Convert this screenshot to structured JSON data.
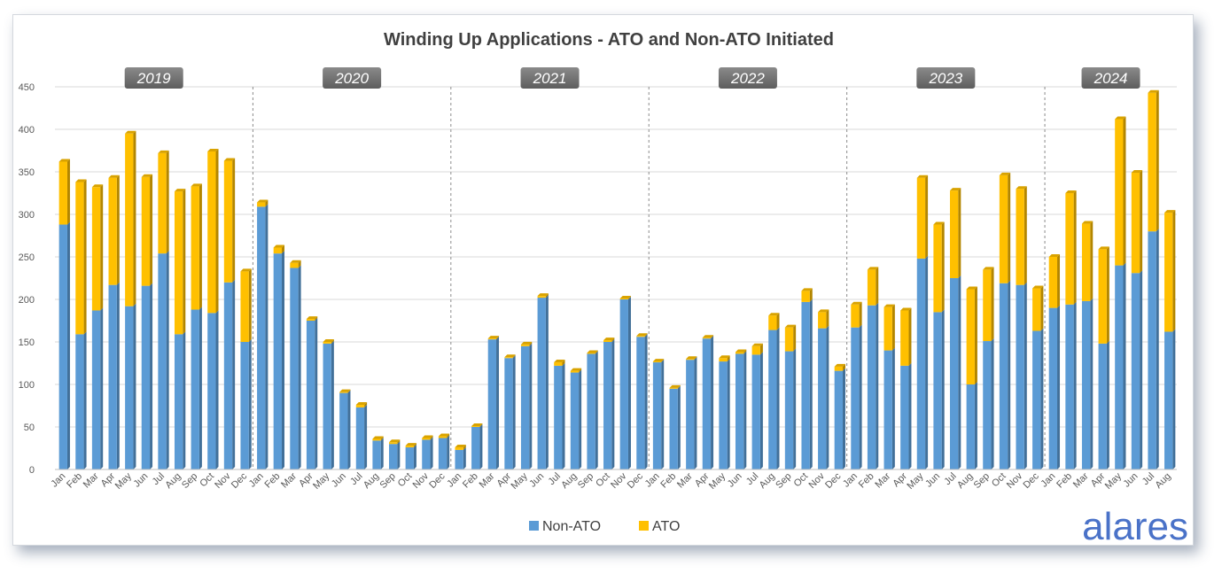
{
  "chart_data": {
    "type": "bar",
    "stacked": true,
    "title": "Winding Up Applications - ATO and Non-ATO Initiated",
    "xlabel": "",
    "ylabel": "",
    "ylim": [
      0,
      450
    ],
    "yticks": [
      0,
      50,
      100,
      150,
      200,
      250,
      300,
      350,
      400,
      450
    ],
    "grid": true,
    "legend": "bottom-center",
    "years": [
      "2019",
      "2020",
      "2021",
      "2022",
      "2023",
      "2024"
    ],
    "categories": [
      "Jan",
      "Feb",
      "Mar",
      "Apr",
      "May",
      "Jun",
      "Jul",
      "Aug",
      "Sep",
      "Oct",
      "Nov",
      "Dec",
      "Jan",
      "Feb",
      "Mar",
      "Apr",
      "May",
      "Jun",
      "Jul",
      "Aug",
      "Sep",
      "Oct",
      "Nov",
      "Dec",
      "Jan",
      "Feb",
      "Mar",
      "Apr",
      "May",
      "Jun",
      "Jul",
      "Aug",
      "Sep",
      "Oct",
      "Nov",
      "Dec",
      "Jan",
      "Feb",
      "Mar",
      "Apr",
      "May",
      "Jun",
      "Jul",
      "Aug",
      "Sep",
      "Oct",
      "Nov",
      "Dec",
      "Jan",
      "Feb",
      "Mar",
      "Apr",
      "May",
      "Jun",
      "Jul",
      "Aug",
      "Sep",
      "Oct",
      "Nov",
      "Dec",
      "Jan",
      "Feb",
      "Mar",
      "Apr",
      "May",
      "Jun",
      "Jul",
      "Aug"
    ],
    "series": [
      {
        "name": "Non-ATO",
        "color": "#5b9bd5",
        "values": [
          288,
          159,
          187,
          217,
          192,
          216,
          254,
          159,
          188,
          184,
          220,
          150,
          309,
          254,
          237,
          175,
          148,
          90,
          73,
          34,
          30,
          26,
          35,
          37,
          23,
          50,
          153,
          131,
          145,
          202,
          122,
          114,
          136,
          150,
          200,
          156,
          126,
          95,
          129,
          154,
          127,
          136,
          135,
          164,
          139,
          197,
          166,
          116,
          167,
          193,
          140,
          122,
          248,
          185,
          225,
          100,
          151,
          219,
          217,
          163,
          190,
          194,
          198,
          148,
          240,
          231,
          280,
          162
        ]
      },
      {
        "name": "ATO",
        "color": "#ffc000",
        "values": [
          74,
          179,
          145,
          126,
          203,
          128,
          118,
          168,
          145,
          190,
          143,
          83,
          5,
          7,
          6,
          2,
          2,
          1,
          3,
          2,
          2,
          2,
          2,
          2,
          3,
          1,
          1,
          1,
          2,
          2,
          4,
          2,
          1,
          2,
          1,
          1,
          1,
          1,
          1,
          1,
          4,
          2,
          10,
          17,
          28,
          13,
          19,
          5,
          27,
          42,
          51,
          65,
          95,
          103,
          103,
          112,
          84,
          127,
          113,
          50,
          60,
          131,
          91,
          111,
          172,
          118,
          163,
          140
        ]
      }
    ]
  },
  "brand": {
    "logo_text": "alares",
    "logo_color": "#4a72c8"
  }
}
